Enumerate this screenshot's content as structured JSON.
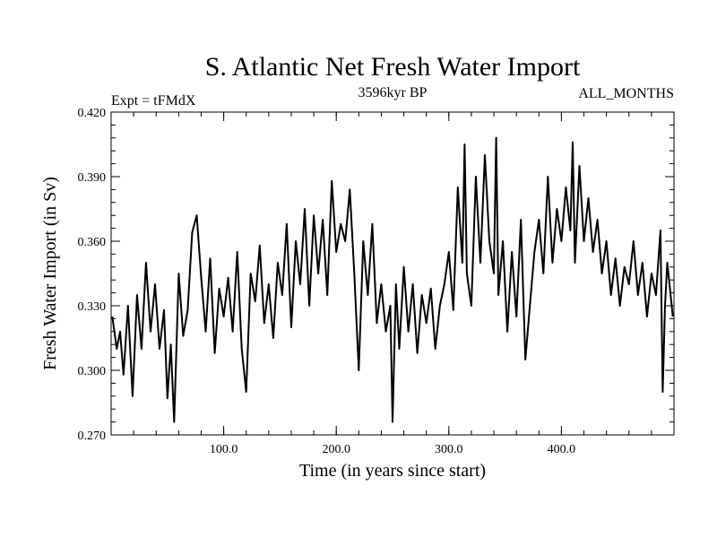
{
  "chart_data": {
    "type": "line",
    "title": "S. Atlantic Net Fresh Water Import",
    "subtitle_left": "Expt = tFMdX",
    "subtitle_center": "3596kyr BP",
    "subtitle_right": "ALL_MONTHS",
    "xlabel": "Time (in years since start)",
    "ylabel": "Fresh Water Import (in Sv)",
    "xlim": [
      0,
      500
    ],
    "ylim": [
      0.27,
      0.42
    ],
    "x_ticks": [
      100,
      200,
      300,
      400
    ],
    "x_tick_labels": [
      "100.0",
      "200.0",
      "300.0",
      "400.0"
    ],
    "y_ticks": [
      0.27,
      0.3,
      0.33,
      0.36,
      0.39,
      0.42
    ],
    "y_tick_labels": [
      "0.270",
      "0.300",
      "0.330",
      "0.360",
      "0.390",
      "0.420"
    ],
    "grid": false,
    "line_color": "#000000",
    "series": [
      {
        "name": "Fresh Water Import",
        "x": [
          1,
          5,
          8,
          11,
          15,
          19,
          23,
          27,
          31,
          35,
          39,
          43,
          47,
          50,
          53,
          56,
          60,
          64,
          68,
          72,
          76,
          80,
          84,
          88,
          92,
          96,
          100,
          104,
          108,
          112,
          116,
          120,
          124,
          128,
          132,
          136,
          140,
          144,
          148,
          152,
          156,
          160,
          164,
          168,
          172,
          176,
          180,
          184,
          188,
          192,
          196,
          200,
          204,
          208,
          212,
          216,
          220,
          224,
          228,
          232,
          236,
          240,
          244,
          248,
          250,
          253,
          256,
          260,
          264,
          268,
          272,
          276,
          280,
          284,
          288,
          292,
          296,
          300,
          304,
          308,
          312,
          314,
          316,
          320,
          324,
          328,
          332,
          336,
          340,
          342,
          344,
          348,
          352,
          356,
          360,
          364,
          368,
          372,
          376,
          380,
          384,
          388,
          392,
          396,
          400,
          404,
          408,
          410,
          412,
          416,
          420,
          424,
          428,
          432,
          436,
          440,
          444,
          448,
          452,
          456,
          460,
          464,
          468,
          472,
          476,
          480,
          484,
          488,
          490,
          492,
          494,
          496,
          499
        ],
        "values": [
          0.325,
          0.31,
          0.318,
          0.298,
          0.33,
          0.288,
          0.335,
          0.31,
          0.35,
          0.318,
          0.34,
          0.31,
          0.328,
          0.287,
          0.312,
          0.276,
          0.345,
          0.316,
          0.328,
          0.364,
          0.372,
          0.343,
          0.318,
          0.352,
          0.308,
          0.338,
          0.325,
          0.343,
          0.318,
          0.355,
          0.31,
          0.29,
          0.345,
          0.332,
          0.358,
          0.322,
          0.34,
          0.315,
          0.35,
          0.335,
          0.368,
          0.32,
          0.36,
          0.34,
          0.375,
          0.33,
          0.372,
          0.345,
          0.37,
          0.335,
          0.388,
          0.355,
          0.368,
          0.36,
          0.384,
          0.345,
          0.3,
          0.36,
          0.335,
          0.368,
          0.322,
          0.34,
          0.318,
          0.33,
          0.276,
          0.34,
          0.31,
          0.348,
          0.318,
          0.34,
          0.308,
          0.335,
          0.322,
          0.338,
          0.31,
          0.33,
          0.34,
          0.355,
          0.328,
          0.385,
          0.35,
          0.405,
          0.345,
          0.33,
          0.39,
          0.35,
          0.4,
          0.36,
          0.345,
          0.408,
          0.335,
          0.36,
          0.318,
          0.355,
          0.325,
          0.37,
          0.305,
          0.33,
          0.355,
          0.37,
          0.345,
          0.39,
          0.35,
          0.375,
          0.36,
          0.385,
          0.365,
          0.406,
          0.35,
          0.395,
          0.36,
          0.38,
          0.355,
          0.37,
          0.345,
          0.36,
          0.335,
          0.352,
          0.33,
          0.348,
          0.34,
          0.36,
          0.335,
          0.35,
          0.325,
          0.345,
          0.335,
          0.365,
          0.29,
          0.33,
          0.35,
          0.34,
          0.325
        ]
      }
    ]
  }
}
